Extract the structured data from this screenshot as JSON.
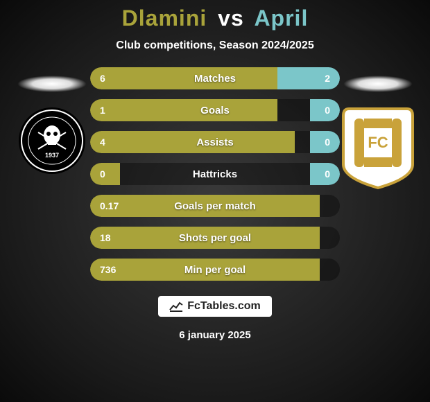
{
  "title": {
    "player1": "Dlamini",
    "vs": "vs",
    "player2": "April"
  },
  "subtitle": "Club competitions, Season 2024/2025",
  "colors": {
    "player1": "#a9a33a",
    "player2": "#7bc6c9",
    "track": "rgba(0,0,0,0.35)",
    "text": "#ffffff"
  },
  "stats": [
    {
      "label": "Matches",
      "v1": "6",
      "v2": "2",
      "w1": 75,
      "w2": 25
    },
    {
      "label": "Goals",
      "v1": "1",
      "v2": "0",
      "w1": 75,
      "w2": 12
    },
    {
      "label": "Assists",
      "v1": "4",
      "v2": "0",
      "w1": 82,
      "w2": 12
    },
    {
      "label": "Hattricks",
      "v1": "0",
      "v2": "0",
      "w1": 12,
      "w2": 12
    },
    {
      "label": "Goals per match",
      "v1": "0.17",
      "v2": "",
      "w1": 92,
      "w2": 0
    },
    {
      "label": "Shots per goal",
      "v1": "18",
      "v2": "",
      "w1": 92,
      "w2": 0
    },
    {
      "label": "Min per goal",
      "v1": "736",
      "v2": "",
      "w1": 92,
      "w2": 0
    }
  ],
  "footer": {
    "brand": "FcTables.com",
    "date": "6 january 2025"
  },
  "badges": {
    "left": {
      "desc": "orlando-pirates-crest",
      "ring_outer": "#000000",
      "ring_inner": "#ffffff",
      "center": "#000000",
      "skull": "#ffffff",
      "year": "1937"
    },
    "right": {
      "desc": "cape-town-city-crest",
      "bg": "#ffffff",
      "gold": "#c9a23a",
      "letters": "FC"
    }
  }
}
